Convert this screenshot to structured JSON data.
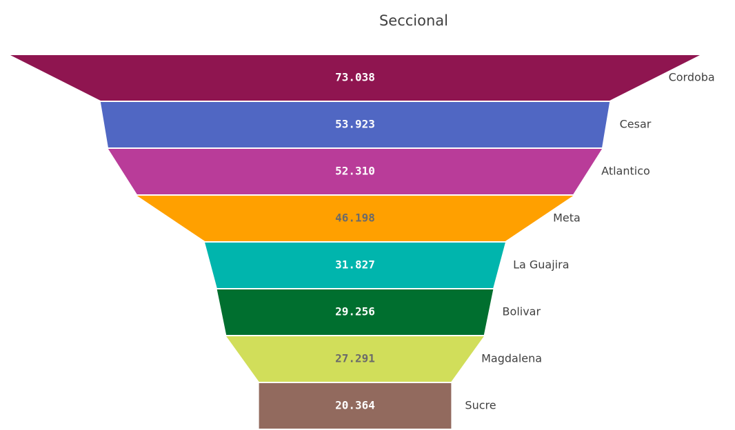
{
  "chart_data": {
    "type": "funnel",
    "title": "Seccional",
    "categories": [
      "Cordoba",
      "Cesar",
      "Atlantico",
      "Meta",
      "La Guajira",
      "Bolivar",
      "Magdalena",
      "Sucre"
    ],
    "values": [
      73038,
      53923,
      52310,
      46198,
      31827,
      29256,
      27291,
      20364
    ],
    "value_labels": [
      "73.038",
      "53.923",
      "52.310",
      "46.198",
      "31.827",
      "29.256",
      "27.291",
      "20.364"
    ],
    "colors": [
      "#8f1550",
      "#5067c3",
      "#b93c99",
      "#ffa000",
      "#00b5ad",
      "#006f2f",
      "#d1de5a",
      "#926a5e"
    ],
    "label_colors": [
      "#ffffff",
      "#ffffff",
      "#ffffff",
      "#6a6a6a",
      "#ffffff",
      "#ffffff",
      "#6a6a6a",
      "#ffffff"
    ]
  }
}
